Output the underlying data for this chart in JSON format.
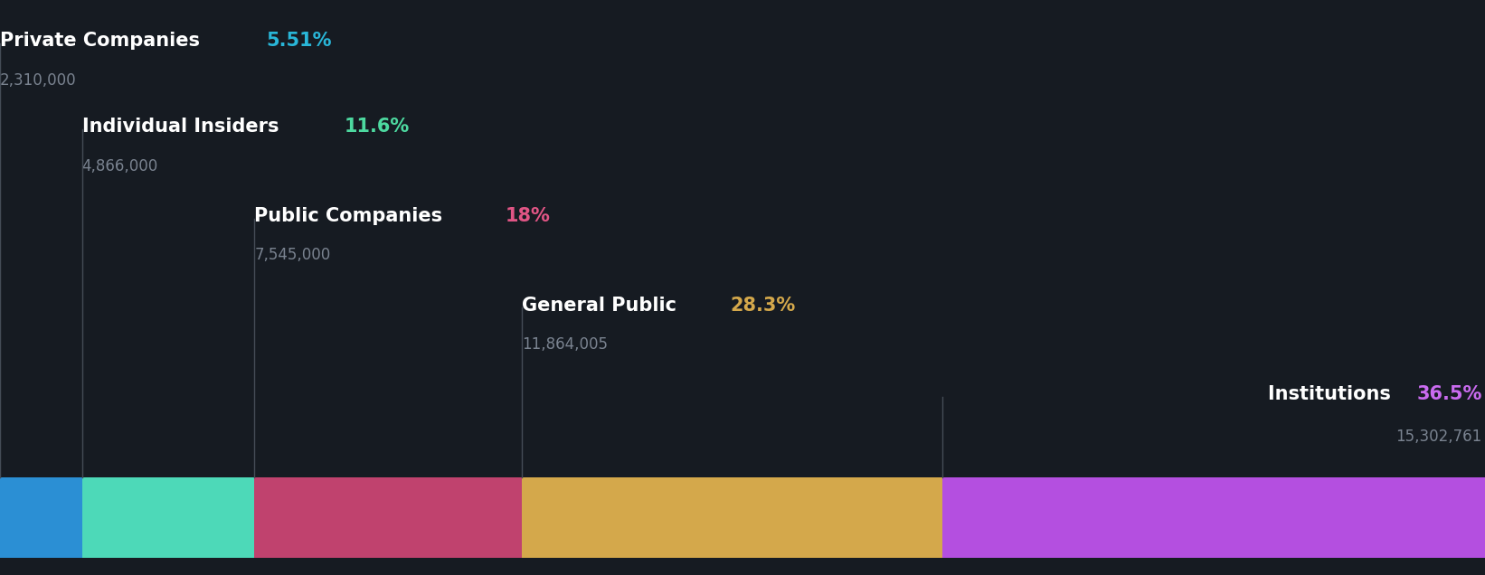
{
  "background_color": "#161b22",
  "categories": [
    {
      "name": "Private Companies",
      "pct": "5.51%",
      "value": "2,310,000",
      "share": 5.51,
      "bar_color": "#2b8fd4",
      "pct_color": "#29b6d8",
      "label_color": "#ffffff",
      "value_color": "#7a8390"
    },
    {
      "name": "Individual Insiders",
      "pct": "11.6%",
      "value": "4,866,000",
      "share": 11.6,
      "bar_color": "#4dd9b8",
      "pct_color": "#4dd9a0",
      "label_color": "#ffffff",
      "value_color": "#7a8390"
    },
    {
      "name": "Public Companies",
      "pct": "18%",
      "value": "7,545,000",
      "share": 18.0,
      "bar_color": "#c0426e",
      "pct_color": "#e05585",
      "label_color": "#ffffff",
      "value_color": "#7a8390"
    },
    {
      "name": "General Public",
      "pct": "28.3%",
      "value": "11,864,005",
      "share": 28.3,
      "bar_color": "#d4a84b",
      "pct_color": "#d4a84b",
      "label_color": "#ffffff",
      "value_color": "#7a8390"
    },
    {
      "name": "Institutions",
      "pct": "36.5%",
      "value": "15,302,761",
      "share": 36.5,
      "bar_color": "#b44fe0",
      "pct_color": "#c96bef",
      "label_color": "#ffffff",
      "value_color": "#7a8390"
    }
  ],
  "line_color": "#444c56",
  "label_fontsize": 15,
  "value_fontsize": 12,
  "pct_fontsize": 15
}
